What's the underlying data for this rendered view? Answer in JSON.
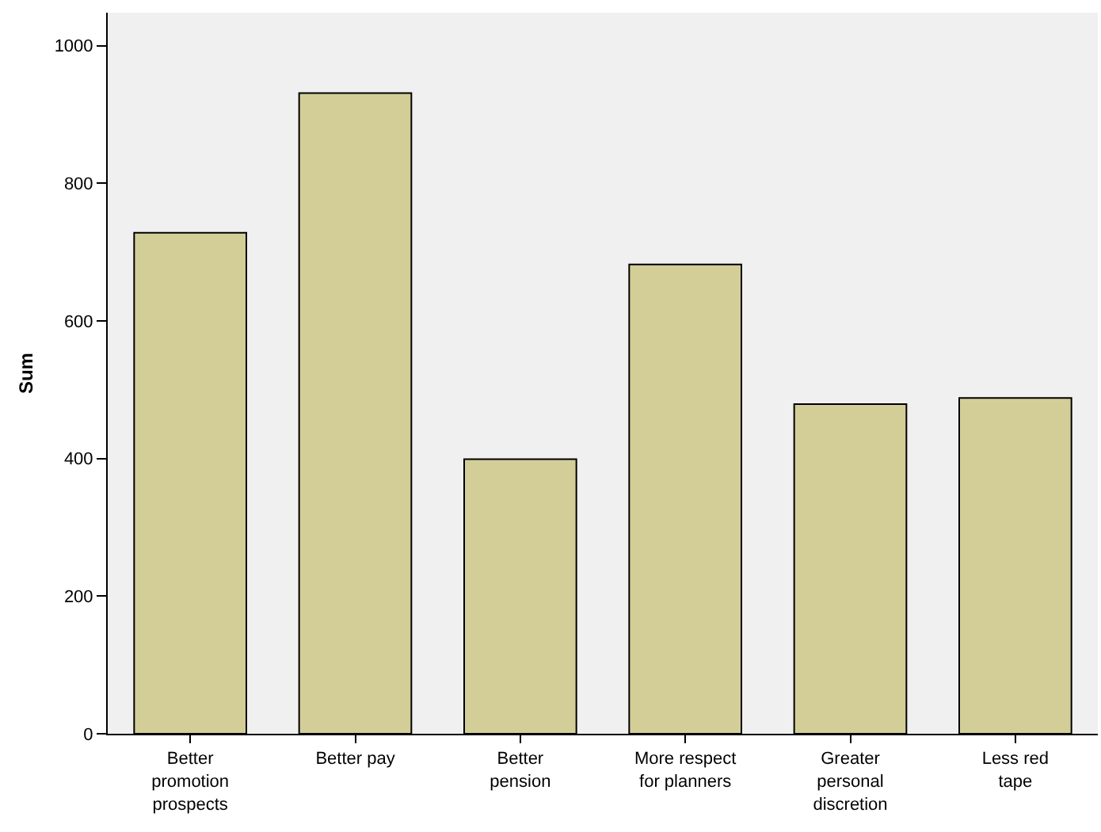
{
  "chart_data": {
    "type": "bar",
    "ylabel": "Sum",
    "categories": [
      "Better promotion prospects",
      "Better pay",
      "Better pension",
      "More respect for planners",
      "Greater personal discretion",
      "Less red tape"
    ],
    "values": [
      728,
      931,
      399,
      682,
      479,
      488
    ],
    "color": "#d3ce98",
    "ylim": [
      0,
      1048
    ],
    "yticks": [
      0,
      200,
      400,
      600,
      800,
      1000
    ],
    "grid": false
  }
}
